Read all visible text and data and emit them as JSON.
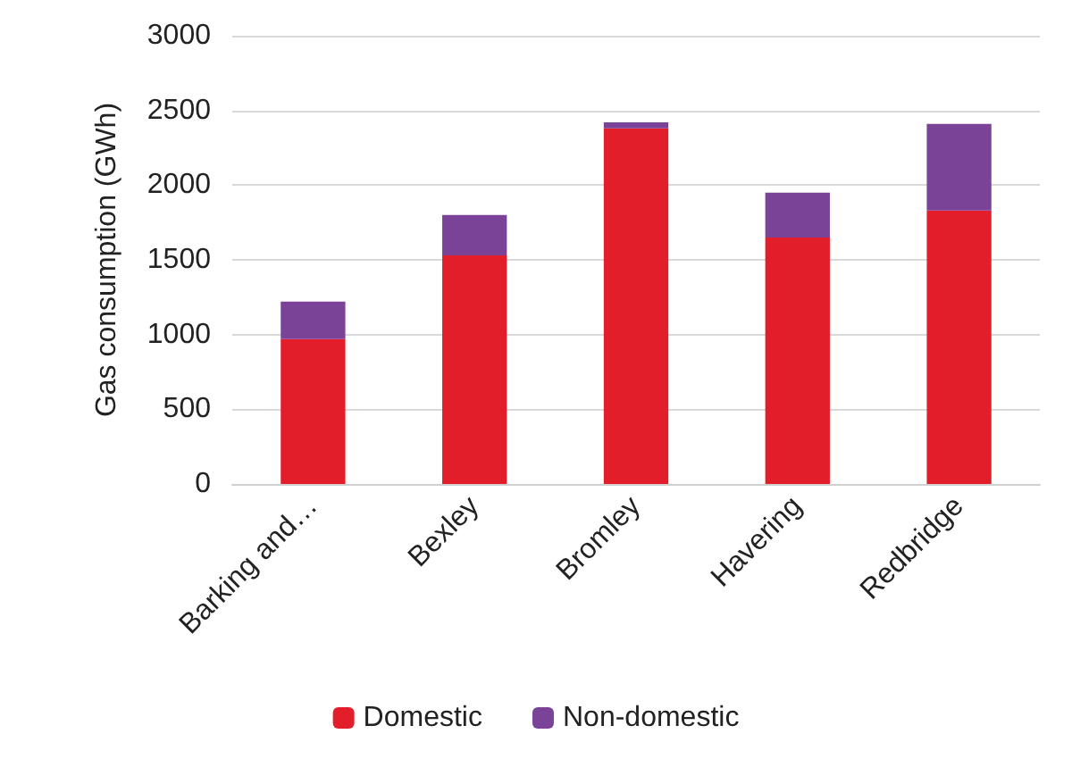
{
  "chart_data": {
    "type": "bar",
    "stacked": true,
    "ylabel": "Gas consumption (GWh)",
    "categories": [
      "Barking and…",
      "Bexley",
      "Bromley",
      "Havering",
      "Redbridge"
    ],
    "series": [
      {
        "name": "Domestic",
        "color": "#e31e2b",
        "values": [
          970,
          1530,
          2380,
          1650,
          1830
        ]
      },
      {
        "name": "Non-domestic",
        "color": "#7b4397",
        "values": [
          250,
          270,
          40,
          300,
          580
        ]
      }
    ],
    "ylim": [
      0,
      3000
    ],
    "yticks": [
      0,
      500,
      1000,
      1500,
      2000,
      2500,
      3000
    ],
    "grid": "y",
    "legend": "bottom"
  }
}
